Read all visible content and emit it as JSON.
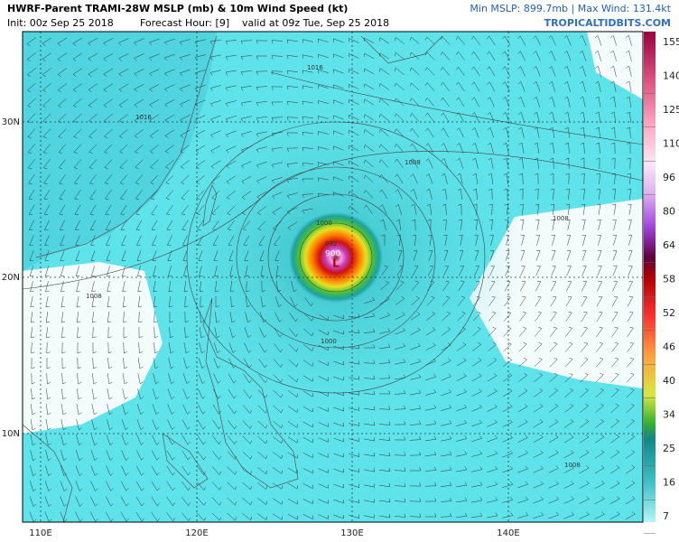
{
  "header": {
    "title": "HWRF-Parent TRAMI-28W MSLP (mb) & 10m Wind Speed (kt)",
    "init": "Init: 00z Sep 25 2018",
    "forecast": "Forecast Hour: [9]",
    "valid": "valid at 09z Tue, Sep 25 2018",
    "stats": "Min MSLP: 899.7mb | Max Wind: 131.4kt",
    "site": "TROPICALTIDBITS.COM"
  },
  "map": {
    "lat_labels": [
      "30N",
      "20N",
      "10N"
    ],
    "lon_labels": [
      "110E",
      "120E",
      "130E",
      "140E"
    ],
    "contour_labels": [
      "1016",
      "1016",
      "1008",
      "1008",
      "1008",
      "1008",
      "1000",
      "1000",
      "992",
      "900"
    ]
  },
  "colorbar": {
    "labels": [
      "155",
      "140",
      "125",
      "110",
      "96",
      "80",
      "64",
      "58",
      "52",
      "46",
      "40",
      "34",
      "25",
      "16",
      "7"
    ]
  }
}
